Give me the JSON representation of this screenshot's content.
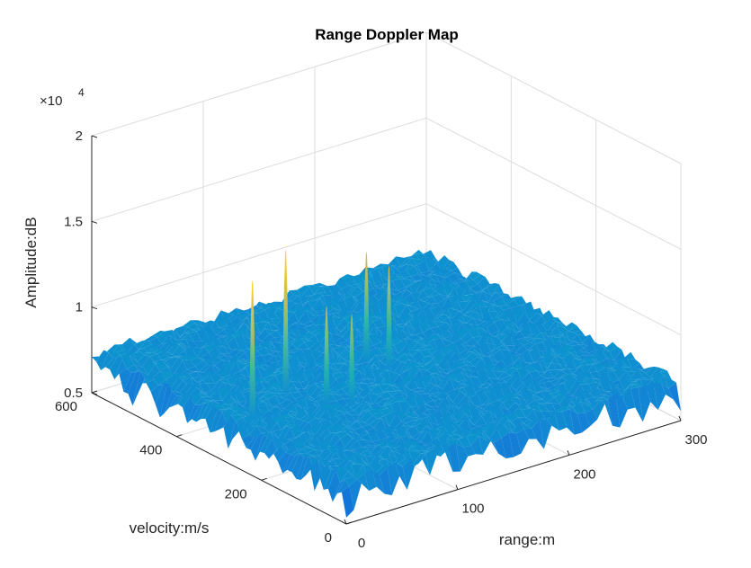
{
  "chart_data": {
    "type": "surface",
    "title": "Range Doppler Map",
    "xlabel": "range:m",
    "ylabel": "velocity:m/s",
    "zlabel": "Amplitude:dB",
    "z_exponent_label": "×10",
    "z_exponent": "4",
    "xlim": [
      0,
      300
    ],
    "ylim": [
      0,
      600
    ],
    "zlim": [
      5000,
      20000
    ],
    "x_ticks": [
      "0",
      "100",
      "200",
      "300"
    ],
    "y_ticks": [
      "0",
      "200",
      "400",
      "600"
    ],
    "z_ticks": [
      "0.5",
      "1",
      "1.5",
      "2"
    ],
    "grid": true,
    "colormap": "parula",
    "noise_floor": 7200,
    "peaks": [
      {
        "range": 30,
        "velocity": 300,
        "amplitude": 14800
      },
      {
        "range": 75,
        "velocity": 340,
        "amplitude": 15200
      },
      {
        "range": 85,
        "velocity": 270,
        "amplitude": 12600
      },
      {
        "range": 100,
        "velocity": 250,
        "amplitude": 12100
      },
      {
        "range": 155,
        "velocity": 360,
        "amplitude": 13200
      },
      {
        "range": 160,
        "velocity": 320,
        "amplitude": 12800
      }
    ]
  }
}
